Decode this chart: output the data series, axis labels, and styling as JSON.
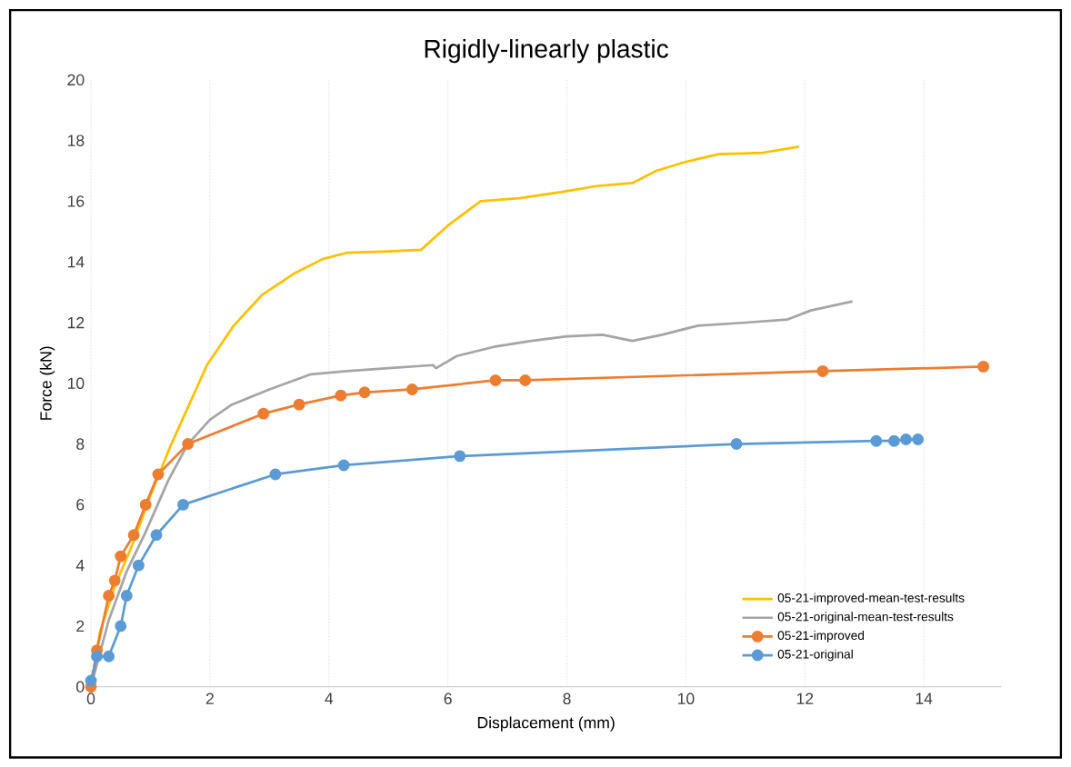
{
  "chart_data": {
    "type": "line",
    "title": "Rigidly-linearly plastic",
    "xlabel": "Displacement (mm)",
    "ylabel": "Force (kN)",
    "xlim": [
      0,
      15.3
    ],
    "xticks": [
      0,
      2,
      4,
      6,
      8,
      10,
      12,
      14
    ],
    "ylim": [
      0,
      20
    ],
    "yticks": [
      0,
      2,
      4,
      6,
      8,
      10,
      12,
      14,
      16,
      18,
      20
    ],
    "grid": "x",
    "legend": "bottom right",
    "series": [
      {
        "name": "05-21-improved-mean-test-results",
        "color": "#ffc000",
        "marker": "none",
        "x": [
          0,
          0.15,
          0.4,
          0.72,
          1.0,
          1.33,
          1.95,
          2.4,
          2.87,
          3.4,
          3.9,
          4.3,
          5.0,
          5.55,
          6.0,
          6.55,
          7.2,
          7.9,
          8.5,
          9.1,
          9.5,
          10.0,
          10.55,
          11.3,
          11.9
        ],
        "values": [
          0,
          1.8,
          3.3,
          4.8,
          6.3,
          7.9,
          10.6,
          11.9,
          12.9,
          13.6,
          14.1,
          14.3,
          14.35,
          14.4,
          15.2,
          16.0,
          16.1,
          16.3,
          16.5,
          16.6,
          17.0,
          17.3,
          17.55,
          17.6,
          17.8
        ]
      },
      {
        "name": "05-21-original-mean-test-results",
        "color": "#a5a5a5",
        "marker": "none",
        "x": [
          0,
          0.3,
          0.6,
          0.92,
          1.3,
          1.63,
          2.0,
          2.37,
          3.0,
          3.7,
          4.3,
          5.0,
          5.75,
          5.8,
          6.15,
          6.77,
          7.4,
          8.0,
          8.6,
          9.1,
          9.6,
          10.2,
          11.0,
          11.7,
          12.1,
          12.8
        ],
        "values": [
          0,
          2.2,
          3.8,
          5.1,
          6.8,
          8.0,
          8.8,
          9.3,
          9.8,
          10.3,
          10.4,
          10.5,
          10.6,
          10.5,
          10.9,
          11.2,
          11.4,
          11.55,
          11.6,
          11.4,
          11.6,
          11.9,
          12.0,
          12.1,
          12.4,
          12.7
        ]
      },
      {
        "name": "05-21-improved",
        "color": "#ed7d31",
        "marker": "circle",
        "x": [
          0,
          0.1,
          0.3,
          0.4,
          0.5,
          0.72,
          0.92,
          1.13,
          1.63,
          2.9,
          3.5,
          4.2,
          4.6,
          5.4,
          6.8,
          7.3,
          12.3,
          15.0
        ],
        "values": [
          0,
          1.2,
          3.0,
          3.5,
          4.3,
          5.0,
          6.0,
          7.0,
          8.0,
          9.0,
          9.3,
          9.6,
          9.7,
          9.8,
          10.1,
          10.1,
          10.4,
          10.55
        ]
      },
      {
        "name": "05-21-original",
        "color": "#5b9bd5",
        "marker": "circle",
        "x": [
          0,
          0.1,
          0.3,
          0.5,
          0.6,
          0.8,
          1.1,
          1.55,
          3.1,
          4.25,
          6.2,
          10.85,
          13.2,
          13.5,
          13.7,
          13.9
        ],
        "values": [
          0.2,
          1.0,
          1.0,
          2.0,
          3.0,
          4.0,
          5.0,
          6.0,
          7.0,
          7.3,
          7.6,
          8.0,
          8.1,
          8.1,
          8.15,
          8.15
        ]
      }
    ]
  }
}
